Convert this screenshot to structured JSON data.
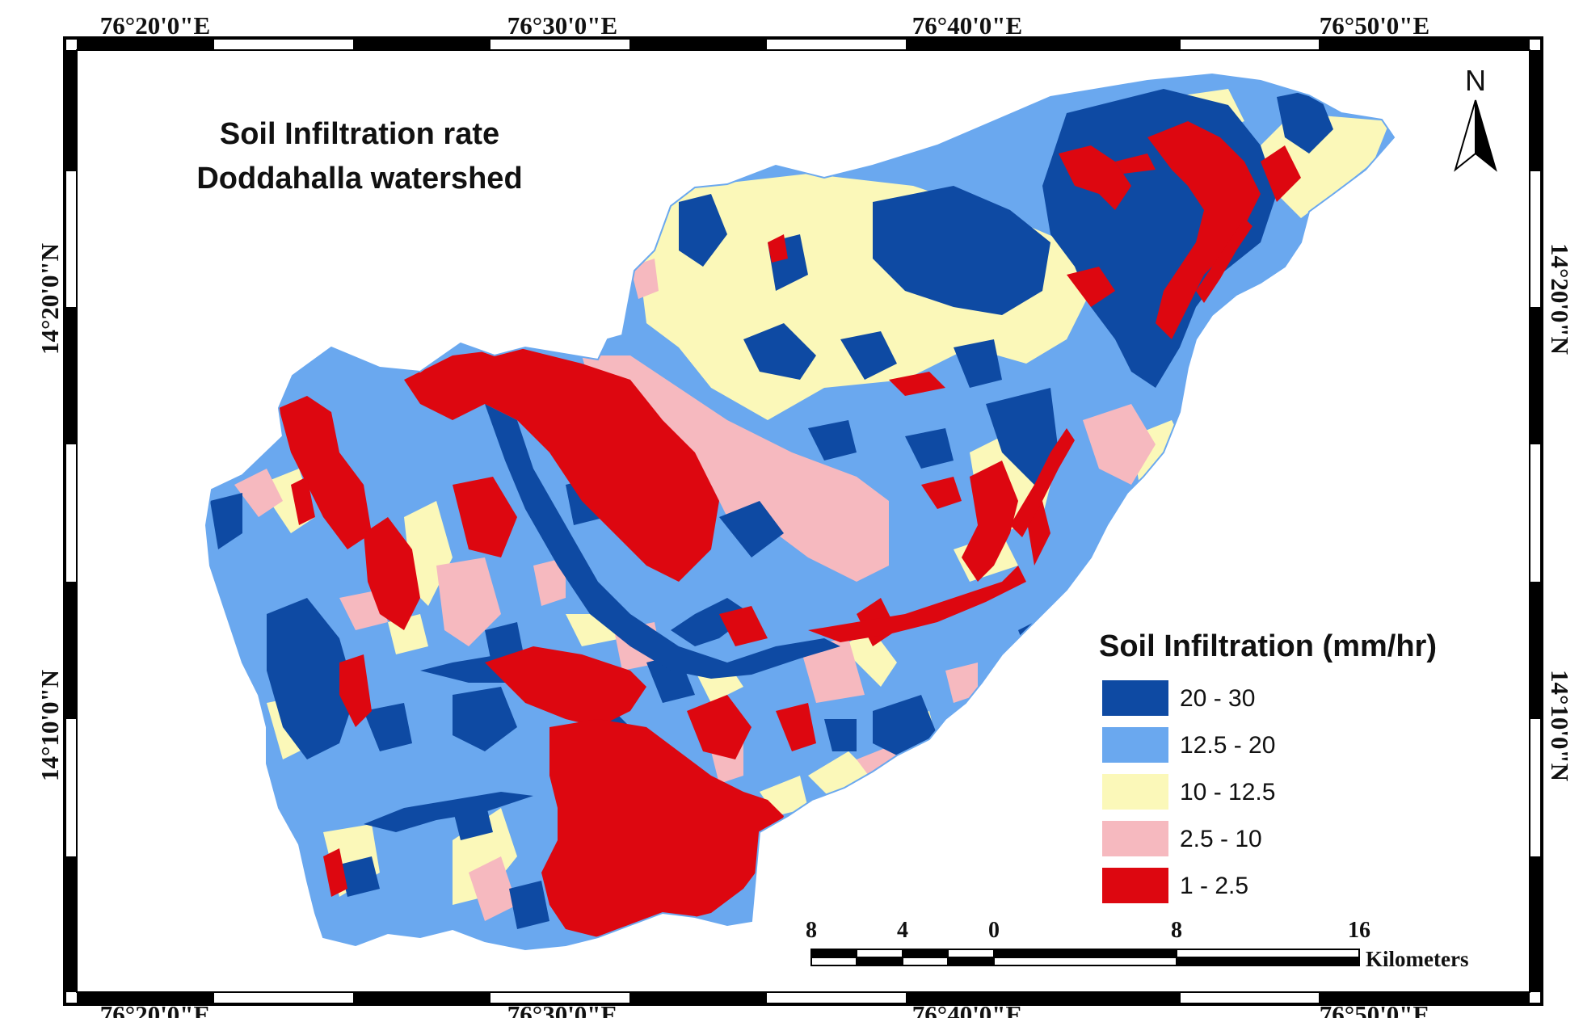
{
  "map": {
    "title_line1": "Soil Infiltration rate",
    "title_line2": "Doddahalla watershed",
    "top_longitudes": [
      "76°20'0\"E",
      "76°30'0\"E",
      "76°40'0\"E",
      "76°50'0\"E"
    ],
    "bottom_longitudes": [
      "76°20'0\"E",
      "76°30'0\"E",
      "76°40'0\"E",
      "76°50'0\"E"
    ],
    "left_latitudes": [
      "14°20'0\"N",
      "14°10'0\"N"
    ],
    "right_latitudes": [
      "14°20'0\"N",
      "14°10'0\"N"
    ],
    "north_arrow_label": "N"
  },
  "legend": {
    "title": "Soil Infiltration (mm/hr)",
    "classes": [
      {
        "label": "20 - 30",
        "color": "#0e4aa3"
      },
      {
        "label": "12.5 - 20",
        "color": "#6aa8ef"
      },
      {
        "label": "10 - 12.5",
        "color": "#fbf8b9"
      },
      {
        "label": "2.5 - 10",
        "color": "#f6b9bf"
      },
      {
        "label": "1 - 2.5",
        "color": "#dd0710"
      }
    ]
  },
  "scale_bar": {
    "ticks": [
      "8",
      "4",
      "0",
      "8",
      "16"
    ],
    "unit": "Kilometers"
  }
}
